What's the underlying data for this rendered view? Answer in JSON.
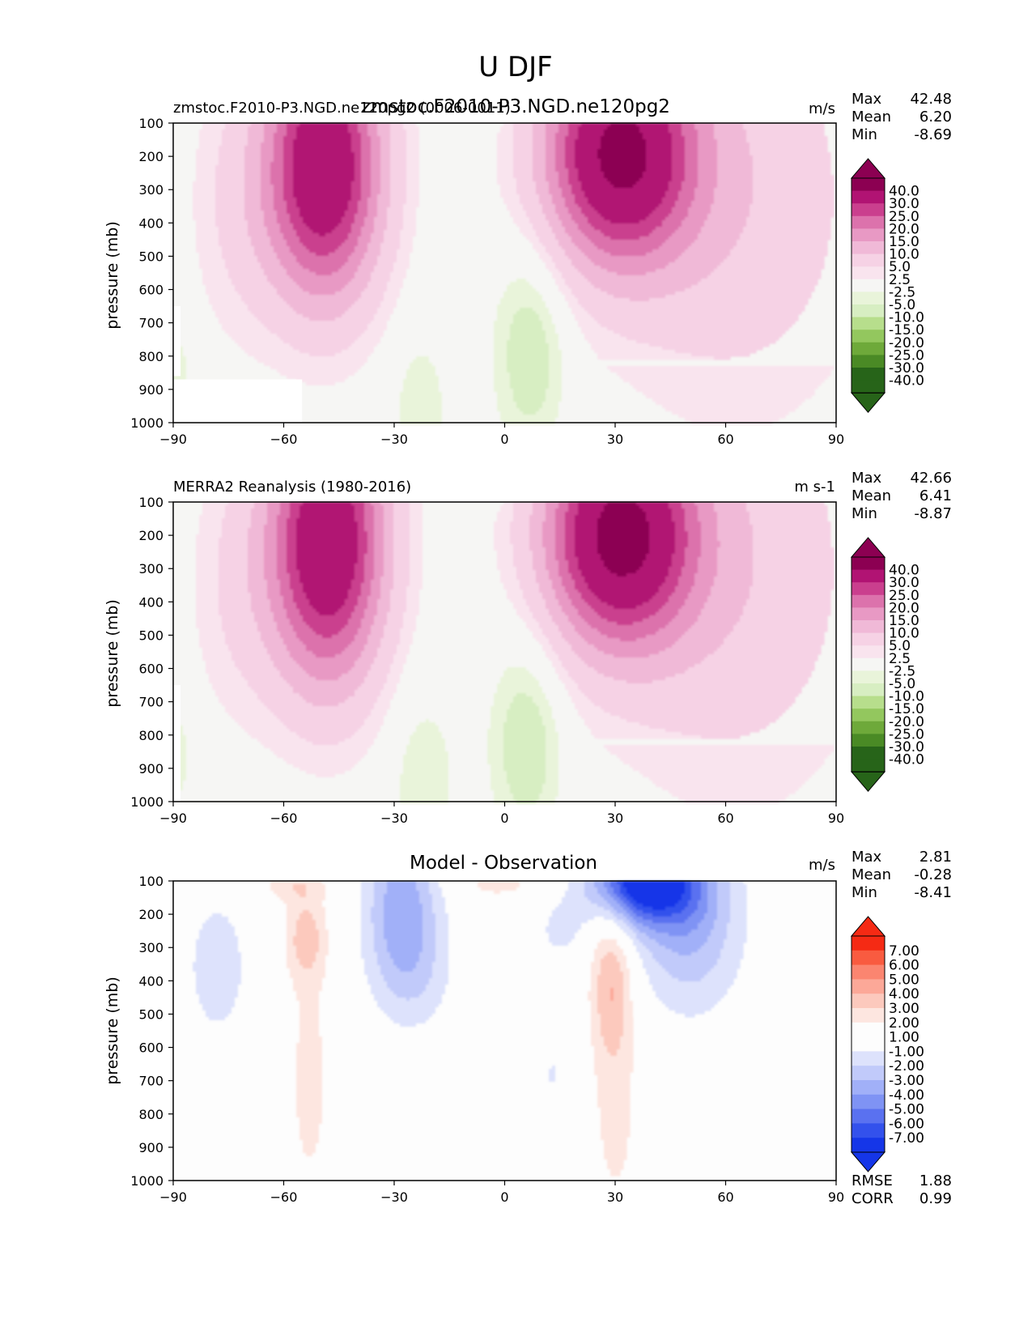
{
  "figure_title": "U DJF",
  "colors": {
    "panel_bg": "#f6f6f4",
    "diff_bg": "#fdfdfd",
    "missing": "#ffffff",
    "seq_pos": [
      "#f6f6f4",
      "#f9e4ee",
      "#f6d2e5",
      "#f0b9d7",
      "#e899c4",
      "#dc72ac",
      "#ca3f8e",
      "#b11373",
      "#8c0052"
    ],
    "seq_neg": [
      "#f6f6f4",
      "#e9f4da",
      "#d7eec2",
      "#b7de8c",
      "#93c75e",
      "#6ea93a",
      "#4a8a25",
      "#276419"
    ],
    "div_pos": [
      "#fdfdfd",
      "#fde6e0",
      "#fcc9bd",
      "#fca898",
      "#fb8570",
      "#f95b40",
      "#f52a14"
    ],
    "div_neg": [
      "#fdfdfd",
      "#dde2fc",
      "#c1cafa",
      "#a1b0f8",
      "#7f93f4",
      "#5a71f0",
      "#3351ec",
      "#1536e8"
    ]
  },
  "chart_data": [
    {
      "type": "contour",
      "left_title": "zmstoc.F2010-P3.NGD.ne120pg2 (0006-0011)",
      "center_title": "zmstoc.F2010-P3.NGD.ne120pg2",
      "units": "m/s",
      "xlabel": "",
      "ylabel": "pressure (mb)",
      "xlim": [
        -90,
        90
      ],
      "ylim": [
        1000,
        100
      ],
      "xticks": [
        "−90",
        "−60",
        "−30",
        "0",
        "30",
        "60",
        "90"
      ],
      "yticks": [
        "100",
        "200",
        "300",
        "400",
        "500",
        "600",
        "700",
        "800",
        "900",
        "1000"
      ],
      "stats": [
        {
          "label": "Max",
          "value": "42.48"
        },
        {
          "label": "Mean",
          "value": "6.20"
        },
        {
          "label": "Min",
          "value": "-8.69"
        }
      ],
      "colorbar_levels": [
        "40.0",
        "30.0",
        "25.0",
        "20.0",
        "15.0",
        "10.0",
        "5.0",
        "2.5",
        "-2.5",
        "-5.0",
        "-10.0",
        "-15.0",
        "-20.0",
        "-25.0",
        "-30.0",
        "-40.0"
      ],
      "features": [
        {
          "name": "southern jet",
          "lat": -49,
          "pressure": 240,
          "value": 40
        },
        {
          "name": "northern jet",
          "lat": 31,
          "pressure": 200,
          "value": 42.5
        },
        {
          "name": "tropical easterlies",
          "lat": 7,
          "pressure": 750,
          "value": -8
        }
      ]
    },
    {
      "type": "contour",
      "left_title": "MERRA2 Reanalysis (1980-2016)",
      "units": "m s-1",
      "ylabel": "pressure (mb)",
      "xlim": [
        -90,
        90
      ],
      "ylim": [
        1000,
        100
      ],
      "xticks": [
        "−90",
        "−60",
        "−30",
        "0",
        "30",
        "60",
        "90"
      ],
      "yticks": [
        "100",
        "200",
        "300",
        "400",
        "500",
        "600",
        "700",
        "800",
        "900",
        "1000"
      ],
      "stats": [
        {
          "label": "Max",
          "value": "42.66"
        },
        {
          "label": "Mean",
          "value": "6.41"
        },
        {
          "label": "Min",
          "value": "-8.87"
        }
      ],
      "colorbar_levels": [
        "40.0",
        "30.0",
        "25.0",
        "20.0",
        "15.0",
        "10.0",
        "5.0",
        "2.5",
        "-2.5",
        "-5.0",
        "-10.0",
        "-15.0",
        "-20.0",
        "-25.0",
        "-30.0",
        "-40.0"
      ],
      "features": [
        {
          "name": "southern jet",
          "lat": -48,
          "pressure": 230,
          "value": 40
        },
        {
          "name": "northern jet",
          "lat": 31,
          "pressure": 200,
          "value": 42.7
        },
        {
          "name": "tropical easterlies",
          "lat": 6,
          "pressure": 800,
          "value": -8
        }
      ]
    },
    {
      "type": "contour",
      "center_title": "Model - Observation",
      "units": "m/s",
      "ylabel": "pressure (mb)",
      "xlim": [
        -90,
        90
      ],
      "ylim": [
        1000,
        100
      ],
      "xticks": [
        "−90",
        "−60",
        "−30",
        "0",
        "30",
        "60",
        "90"
      ],
      "yticks": [
        "100",
        "200",
        "300",
        "400",
        "500",
        "600",
        "700",
        "800",
        "900",
        "1000"
      ],
      "stats": [
        {
          "label": "Max",
          "value": "2.81"
        },
        {
          "label": "Mean",
          "value": "-0.28"
        },
        {
          "label": "Min",
          "value": "-8.41"
        }
      ],
      "colorbar_levels": [
        "7.00",
        "6.00",
        "5.00",
        "4.00",
        "3.00",
        "2.00",
        "1.00",
        "-1.00",
        "-2.00",
        "-3.00",
        "-4.00",
        "-5.00",
        "-6.00",
        "-7.00"
      ],
      "extra_stats": [
        {
          "label": "RMSE",
          "value": "1.88"
        },
        {
          "label": "CORR",
          "value": "0.99"
        }
      ]
    }
  ]
}
